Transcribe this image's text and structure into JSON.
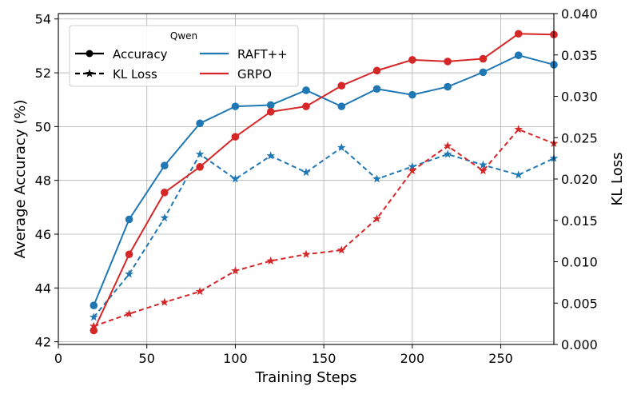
{
  "chart_data": {
    "type": "line",
    "xlabel": "Training Steps",
    "ylabel_left": "Average Accuracy (%)",
    "ylabel_right": "KL Loss",
    "xlim": [
      0,
      280
    ],
    "ylim_left": [
      41.9,
      54.2
    ],
    "ylim_right": [
      0.0,
      0.04
    ],
    "x_ticks": [
      0,
      50,
      100,
      150,
      200,
      250
    ],
    "x_tick_labels": [
      "0",
      "50",
      "100",
      "150",
      "200",
      "250"
    ],
    "y_left_ticks": [
      42,
      44,
      46,
      48,
      50,
      52,
      54
    ],
    "y_left_tick_labels": [
      "42",
      "44",
      "46",
      "48",
      "50",
      "52",
      "54"
    ],
    "y_right_ticks": [
      0.0,
      0.005,
      0.01,
      0.015,
      0.02,
      0.025,
      0.03,
      0.035,
      0.04
    ],
    "y_right_tick_labels": [
      "0.000",
      "0.005",
      "0.010",
      "0.015",
      "0.020",
      "0.025",
      "0.030",
      "0.035",
      "0.040"
    ],
    "grid": true,
    "x": [
      20,
      40,
      60,
      80,
      100,
      120,
      140,
      160,
      180,
      200,
      220,
      240,
      260,
      280
    ],
    "series": [
      {
        "name": "RAFT++",
        "metric": "Accuracy",
        "axis": "left",
        "color": "#1f77b4",
        "style": "solid",
        "marker": "circle",
        "values": [
          43.35,
          46.55,
          48.55,
          50.12,
          50.75,
          50.8,
          51.35,
          50.75,
          51.4,
          51.18,
          51.48,
          52.02,
          52.65,
          52.3
        ]
      },
      {
        "name": "GRPO",
        "metric": "Accuracy",
        "axis": "left",
        "color": "#d62728",
        "style": "solid",
        "marker": "circle",
        "values": [
          42.42,
          45.25,
          47.55,
          48.5,
          49.62,
          50.55,
          50.75,
          51.52,
          52.08,
          52.48,
          52.42,
          52.52,
          53.45,
          53.42
        ]
      },
      {
        "name": "RAFT++",
        "metric": "KL Loss",
        "axis": "right",
        "color": "#1f77b4",
        "style": "dashed",
        "marker": "star",
        "values": [
          0.0033,
          0.0085,
          0.0153,
          0.023,
          0.02,
          0.0228,
          0.0208,
          0.0238,
          0.02,
          0.0215,
          0.023,
          0.0217,
          0.0205,
          0.0225
        ]
      },
      {
        "name": "GRPO",
        "metric": "KL Loss",
        "axis": "right",
        "color": "#d62728",
        "style": "dashed",
        "marker": "star",
        "values": [
          0.0022,
          0.0037,
          0.0051,
          0.0064,
          0.0089,
          0.0101,
          0.0109,
          0.0114,
          0.0152,
          0.021,
          0.024,
          0.021,
          0.026,
          0.0243
        ]
      }
    ],
    "legend": {
      "title": "Qwen",
      "position": "top-left",
      "style_entries": [
        {
          "label": "Accuracy",
          "style": "solid",
          "marker": "circle",
          "color": "#000000"
        },
        {
          "label": "KL Loss",
          "style": "dashed",
          "marker": "star",
          "color": "#000000"
        }
      ],
      "color_entries": [
        {
          "label": "RAFT++",
          "color": "#1f77b4"
        },
        {
          "label": "GRPO",
          "color": "#d62728"
        }
      ]
    }
  }
}
